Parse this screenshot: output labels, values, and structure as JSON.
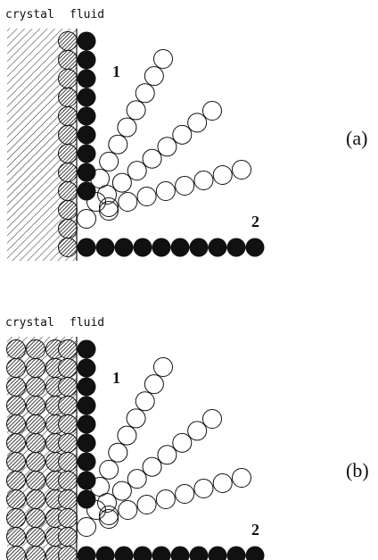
{
  "panels": [
    {
      "crystal": "crystal",
      "fluid": "fluid",
      "chain1": "1",
      "chain2": "2",
      "label": "(a)"
    },
    {
      "crystal": "crystal",
      "fluid": "fluid",
      "chain1": "1",
      "chain2": "2",
      "label": "(b)"
    }
  ]
}
